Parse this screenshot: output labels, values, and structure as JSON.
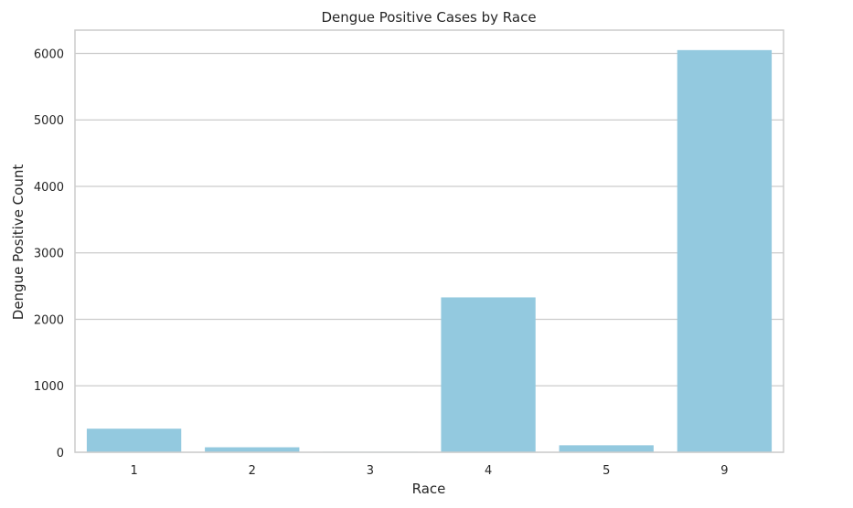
{
  "chart_data": {
    "type": "bar",
    "title": "Dengue Positive Cases by Race",
    "xlabel": "Race",
    "ylabel": "Dengue Positive Count",
    "categories": [
      "1",
      "2",
      "3",
      "4",
      "5",
      "9"
    ],
    "values": [
      355,
      75,
      8,
      2330,
      105,
      6050
    ],
    "ylim": [
      0,
      6350
    ],
    "yticks": [
      0,
      1000,
      2000,
      3000,
      4000,
      5000,
      6000
    ],
    "grid": true,
    "bar_color": "#93c9df"
  }
}
